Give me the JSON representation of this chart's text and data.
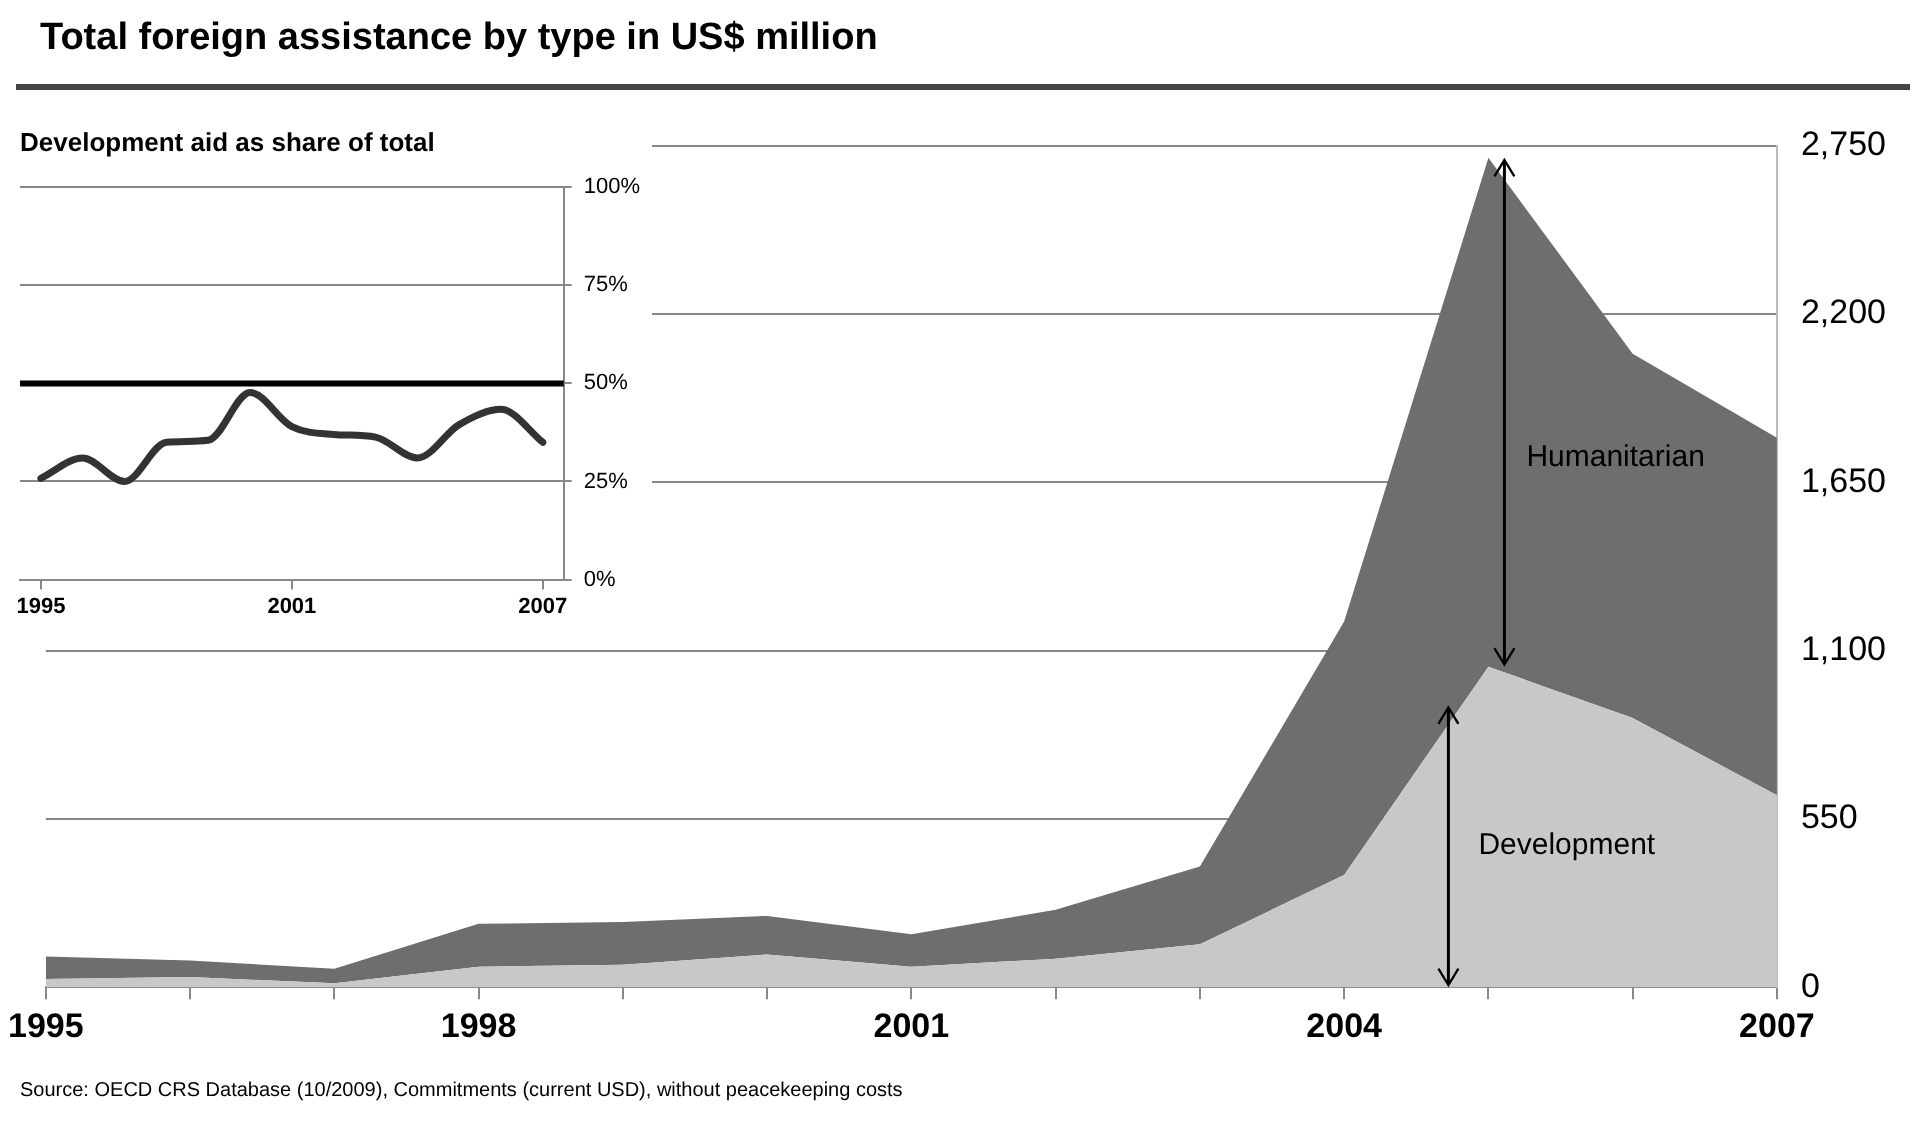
{
  "chart_data": [
    {
      "type": "area",
      "title": "Total foreign assistance by type in US$ million",
      "annotations": [
        "Source: OECD CRS Database (10/2009), Commitments (current USD), without peacekeeping costs"
      ],
      "stacked": true,
      "x": [
        1995,
        1996,
        1997,
        1998,
        1999,
        2000,
        2001,
        2002,
        2003,
        2004,
        2005,
        2006,
        2007
      ],
      "series": [
        {
          "name": "Development",
          "color": "#c8c8c8",
          "values": [
            27,
            33,
            13,
            67,
            73,
            107,
            67,
            93,
            140,
            367,
            1047,
            880,
            627
          ]
        },
        {
          "name": "Humanitarian",
          "color": "#6e6e6e",
          "values": [
            73,
            54,
            47,
            140,
            140,
            126,
            106,
            160,
            254,
            828,
            1663,
            1190,
            1168
          ]
        }
      ],
      "xlim": [
        1995,
        2007
      ],
      "xticks": [
        1995,
        {
          "value": 1996,
          "label": null
        },
        {
          "value": 1997,
          "label": null
        },
        1998,
        {
          "value": 1999,
          "label": null
        },
        {
          "value": 2000,
          "label": null
        },
        2001,
        {
          "value": 2002,
          "label": null
        },
        {
          "value": 2003,
          "label": null
        },
        2004,
        {
          "value": 2005,
          "label": null
        },
        {
          "value": 2006,
          "label": null
        },
        2007
      ],
      "ylim": [
        0,
        2750
      ],
      "yticks": [
        0,
        550,
        {
          "value": 1100,
          "label": "1,100"
        },
        {
          "value": 1650,
          "label": "1,650"
        },
        {
          "value": 2200,
          "label": "2,200"
        },
        {
          "value": 2750,
          "label": "2,750"
        }
      ],
      "grid": "y"
    },
    {
      "type": "line",
      "title": "Development aid as share of total",
      "x": [
        1995,
        1996,
        1997,
        1998,
        1999,
        2000,
        2001,
        2002,
        2003,
        2004,
        2005,
        2006,
        2007
      ],
      "values": [
        25.8,
        31,
        25,
        35,
        35.5,
        47.7,
        39,
        37,
        36.3,
        31,
        39.5,
        43.4,
        35
      ],
      "color": "#333333",
      "marker": "none",
      "xlim": [
        1994.5,
        2007.5
      ],
      "xticks": [
        1995,
        2001,
        2007
      ],
      "ylim": [
        0,
        100
      ],
      "yticks": [
        {
          "value": 0,
          "label": "0%"
        },
        {
          "value": 25,
          "label": "25%"
        },
        {
          "value": 50,
          "label": "50%"
        },
        {
          "value": 75,
          "label": "75%"
        },
        {
          "value": 100,
          "label": "100%"
        }
      ],
      "grid": "y",
      "ref_lines": [
        {
          "axis": "y",
          "value": 50,
          "color": "#000000"
        }
      ]
    }
  ]
}
